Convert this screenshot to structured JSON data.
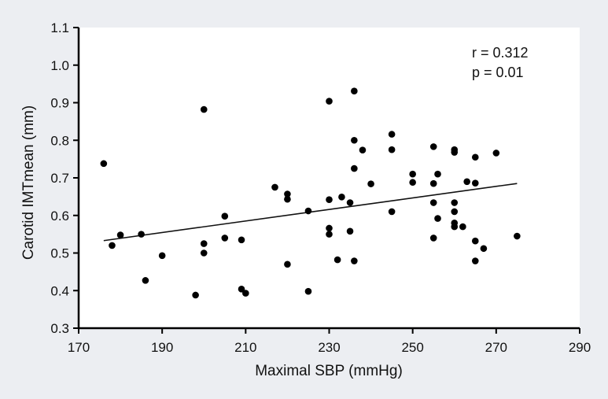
{
  "chart_data": {
    "type": "scatter",
    "title": "",
    "xlabel": "Maximal SBP (mmHg)",
    "ylabel": "Carotid IMTmean (mm)",
    "xlim": [
      170,
      290
    ],
    "ylim": [
      0.3,
      1.1
    ],
    "x_ticks": [
      170,
      190,
      210,
      230,
      250,
      270,
      290
    ],
    "y_ticks": [
      0.3,
      0.4,
      0.5,
      0.6,
      0.7,
      0.8,
      0.9,
      1.0,
      1.1
    ],
    "x_tick_labels": [
      "170",
      "190",
      "210",
      "230",
      "250",
      "270",
      "290"
    ],
    "y_tick_labels": [
      "0.3",
      "0.4",
      "0.5",
      "0.6",
      "0.7",
      "0.8",
      "0.9",
      "1.0",
      "1.1"
    ],
    "grid": false,
    "annotations": [
      "r = 0.312",
      "p = 0.01"
    ],
    "trendline": {
      "x": [
        176,
        275
      ],
      "y": [
        0.533,
        0.685
      ]
    },
    "series": [
      {
        "x": [
          176,
          178,
          180,
          185,
          186,
          190,
          198,
          200,
          200,
          200,
          205,
          205,
          209,
          209,
          210,
          217,
          220,
          220,
          220,
          225,
          225,
          230,
          230,
          230,
          230,
          232,
          233,
          235,
          235,
          236,
          236,
          236,
          236,
          238,
          240,
          245,
          245,
          245,
          250,
          250,
          255,
          255,
          255,
          255,
          256,
          256,
          260,
          260,
          260,
          260,
          260,
          260,
          262,
          263,
          265,
          265,
          265,
          265,
          267,
          270,
          275
        ],
        "y": [
          0.738,
          0.52,
          0.548,
          0.55,
          0.427,
          0.493,
          0.388,
          0.882,
          0.525,
          0.5,
          0.598,
          0.54,
          0.535,
          0.404,
          0.393,
          0.675,
          0.657,
          0.643,
          0.47,
          0.612,
          0.398,
          0.904,
          0.642,
          0.566,
          0.55,
          0.482,
          0.649,
          0.634,
          0.558,
          0.931,
          0.8,
          0.725,
          0.479,
          0.774,
          0.684,
          0.816,
          0.775,
          0.61,
          0.71,
          0.688,
          0.783,
          0.685,
          0.634,
          0.54,
          0.71,
          0.592,
          0.775,
          0.768,
          0.634,
          0.61,
          0.58,
          0.57,
          0.57,
          0.69,
          0.755,
          0.686,
          0.532,
          0.479,
          0.512,
          0.766,
          0.545
        ]
      }
    ]
  }
}
